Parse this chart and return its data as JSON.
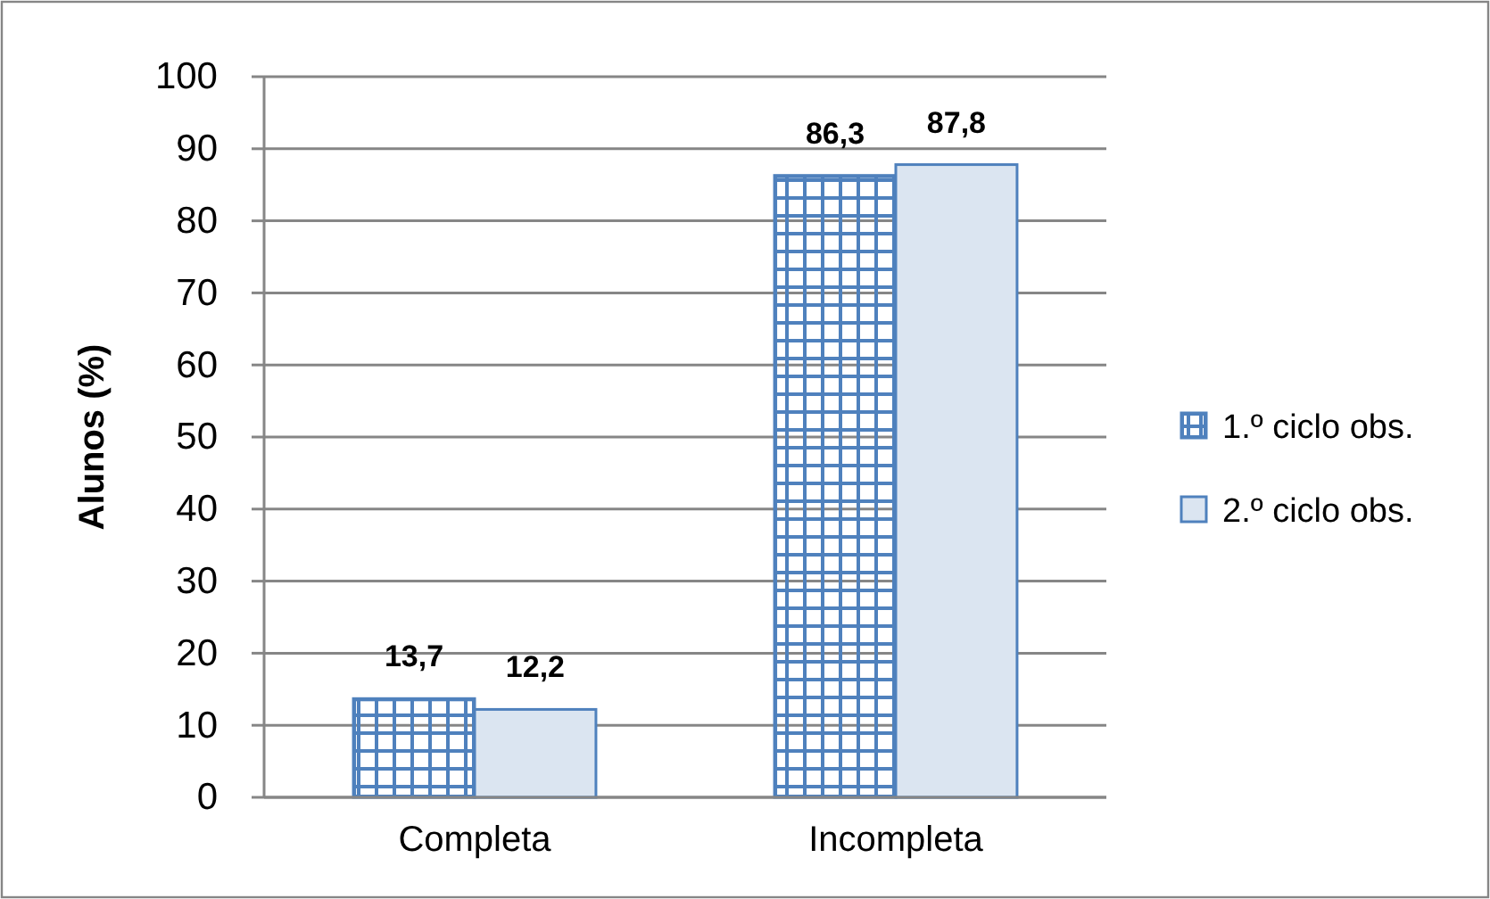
{
  "chart_data": {
    "type": "bar",
    "categories": [
      "Completa",
      "Incompleta"
    ],
    "ylabel": "Alunos (%)",
    "ylim": [
      0,
      100
    ],
    "yticks": [
      0,
      10,
      20,
      30,
      40,
      50,
      60,
      70,
      80,
      90,
      100
    ],
    "grid": "y",
    "legend": "right",
    "series": [
      {
        "name": "1.º ciclo obs.",
        "color": "#4f81bd",
        "values": [
          13.7,
          86.3
        ],
        "value_labels": [
          "13,7",
          "86,3"
        ]
      },
      {
        "name": "2.º ciclo obs.",
        "color": "#dbe5f1",
        "values": [
          12.2,
          87.8
        ],
        "value_labels": [
          "12,2",
          "87,8"
        ]
      }
    ]
  }
}
